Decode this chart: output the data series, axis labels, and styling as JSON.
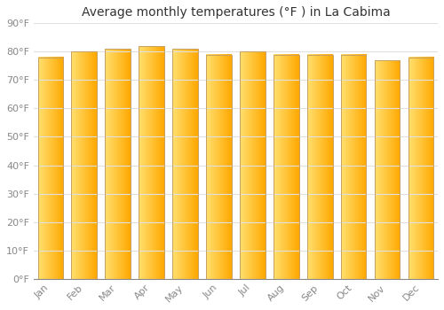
{
  "title": "Average monthly temperatures (°F ) in La Cabima",
  "months": [
    "Jan",
    "Feb",
    "Mar",
    "Apr",
    "May",
    "Jun",
    "Jul",
    "Aug",
    "Sep",
    "Oct",
    "Nov",
    "Dec"
  ],
  "values": [
    78,
    80,
    81,
    82,
    81,
    79,
    80,
    79,
    79,
    79,
    77,
    78
  ],
  "ylim": [
    0,
    90
  ],
  "yticks": [
    0,
    10,
    20,
    30,
    40,
    50,
    60,
    70,
    80,
    90
  ],
  "ytick_labels": [
    "0°F",
    "10°F",
    "20°F",
    "30°F",
    "40°F",
    "50°F",
    "60°F",
    "70°F",
    "80°F",
    "90°F"
  ],
  "bar_color_left": "#FFE070",
  "bar_color_right": "#FFA800",
  "bar_edge_color": "#C8A060",
  "background_color": "#FFFFFF",
  "grid_color": "#E0E0E0",
  "title_fontsize": 10,
  "tick_fontsize": 8,
  "tick_color": "#888888",
  "bar_width": 0.75
}
